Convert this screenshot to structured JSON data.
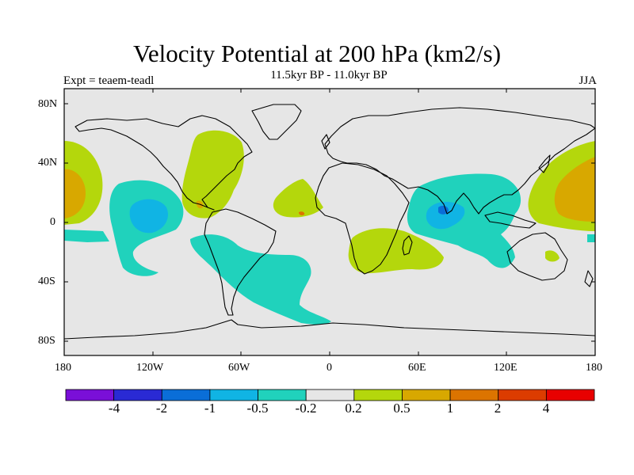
{
  "title": "Velocity Potential at 200 hPa (km2/s)",
  "subtitle": "11.5kyr BP - 11.0kyr BP",
  "expt": "Expt = teaem-teadl",
  "season": "JJA",
  "y_ticks": [
    "80N",
    "40N",
    "0",
    "40S",
    "80S"
  ],
  "x_ticks": [
    "180",
    "120W",
    "60W",
    "0",
    "60E",
    "120E",
    "180"
  ],
  "colorbar": {
    "colors": [
      "#7a0fd8",
      "#2a2ad4",
      "#0a6ed8",
      "#10b4e4",
      "#20d2bc",
      "#e6e6e6",
      "#b4d70c",
      "#d8a800",
      "#dc7400",
      "#dc3c00",
      "#e80000"
    ],
    "labels": [
      "-4",
      "-2",
      "-1",
      "-0.5",
      "-0.2",
      "0.2",
      "0.5",
      "1",
      "2",
      "4"
    ]
  },
  "colors": {
    "background": "#e6e6e6",
    "lime": "#b4d70c",
    "gold": "#d8a800",
    "orange": "#dc7400",
    "teal": "#20d2bc",
    "cyan": "#10b4e4",
    "blue": "#0a6ed8"
  }
}
